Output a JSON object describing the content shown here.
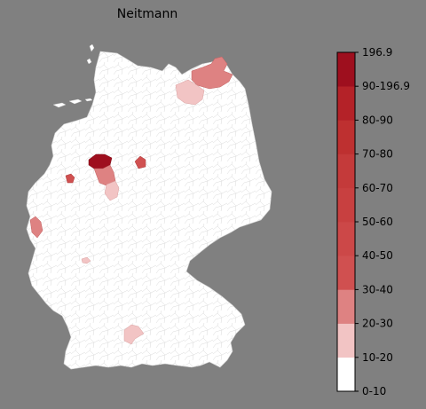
{
  "title": "Neitmann",
  "legend": {
    "tick_labels": [
      "0-10",
      "10-20",
      "20-30",
      "30-40",
      "40-50",
      "50-60",
      "60-70",
      "70-80",
      "80-90",
      "90-196.9",
      "196.9"
    ],
    "bins": [
      {
        "label": "0-10",
        "color": "#ffffff"
      },
      {
        "label": "10-20",
        "color": "#f2c4c4"
      },
      {
        "label": "20-30",
        "color": "#de8282"
      },
      {
        "label": "30-40",
        "color": "#d05050"
      },
      {
        "label": "40-50",
        "color": "#cc4848"
      },
      {
        "label": "50-60",
        "color": "#c84040"
      },
      {
        "label": "60-70",
        "color": "#c43a3a"
      },
      {
        "label": "70-80",
        "color": "#be3030"
      },
      {
        "label": "80-90",
        "color": "#b42228"
      },
      {
        "label": "90-196.9",
        "color": "#9e0f1e"
      }
    ]
  },
  "colors": {
    "background": "#808080",
    "land": "#ffffff",
    "district_borders": "#d9d9d9"
  }
}
